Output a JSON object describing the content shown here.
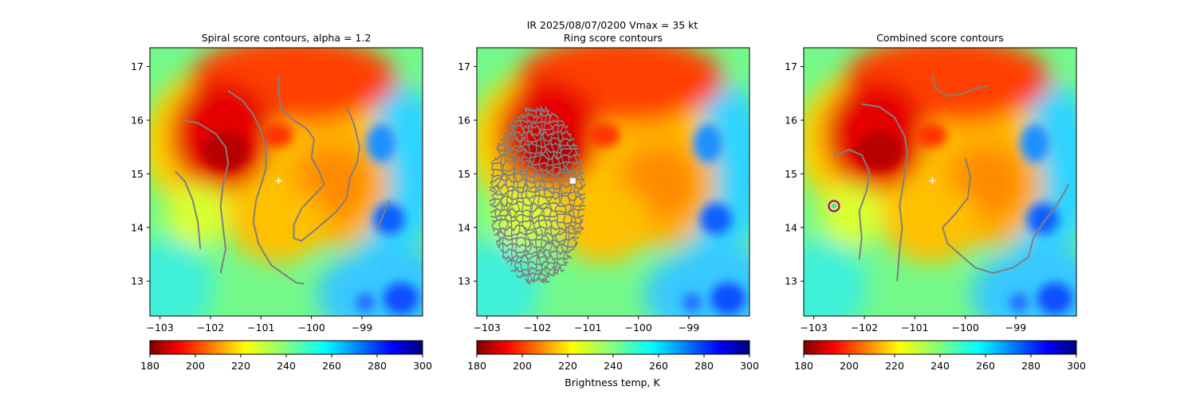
{
  "figure": {
    "suptitle_line1": "IR  2025/08/07/0200    Vmax = 35 kt",
    "colorbar_label": "Brightness temp, K",
    "colormap": [
      "#7f0000",
      "#ff0000",
      "#ff8000",
      "#ffff00",
      "#80ff80",
      "#00ffff",
      "#0080ff",
      "#0000ff",
      "#000080"
    ]
  },
  "chart_data": [
    {
      "type": "heatmap",
      "title": "Spiral score contours, alpha =  1.2",
      "xlim": [
        -103.2,
        -97.8
      ],
      "ylim": [
        12.35,
        17.35
      ],
      "xticks": [
        -103,
        -102,
        -101,
        -100,
        -99
      ],
      "yticks": [
        13,
        14,
        15,
        16,
        17
      ],
      "center": {
        "x": -100.65,
        "y": 14.87,
        "marker": "white-plus"
      },
      "colorbar": {
        "vmin": 180,
        "vmax": 300,
        "ticks": [
          180,
          200,
          220,
          240,
          260,
          280,
          300
        ]
      },
      "contours": [
        [
          [
            -102.7,
            15.05
          ],
          [
            -102.5,
            14.85
          ],
          [
            -102.35,
            14.5
          ],
          [
            -102.25,
            14.1
          ],
          [
            -102.2,
            13.6
          ]
        ],
        [
          [
            -102.55,
            16.0
          ],
          [
            -102.25,
            15.95
          ],
          [
            -101.9,
            15.75
          ],
          [
            -101.7,
            15.5
          ],
          [
            -101.65,
            15.2
          ],
          [
            -101.75,
            14.8
          ],
          [
            -101.8,
            14.4
          ],
          [
            -101.75,
            14.0
          ],
          [
            -101.7,
            13.6
          ],
          [
            -101.8,
            13.15
          ]
        ],
        [
          [
            -101.65,
            16.55
          ],
          [
            -101.35,
            16.35
          ],
          [
            -101.15,
            16.1
          ],
          [
            -101.0,
            15.8
          ],
          [
            -100.9,
            15.5
          ],
          [
            -100.9,
            15.1
          ],
          [
            -101.0,
            14.8
          ],
          [
            -101.1,
            14.5
          ],
          [
            -101.15,
            14.1
          ],
          [
            -101.05,
            13.7
          ],
          [
            -100.8,
            13.3
          ],
          [
            -100.5,
            13.1
          ],
          [
            -100.3,
            12.97
          ],
          [
            -100.15,
            12.95
          ]
        ],
        [
          [
            -100.65,
            16.85
          ],
          [
            -100.65,
            16.5
          ],
          [
            -100.6,
            16.2
          ],
          [
            -100.35,
            16.0
          ],
          [
            -100.1,
            15.85
          ],
          [
            -99.95,
            15.65
          ],
          [
            -100.0,
            15.3
          ],
          [
            -99.85,
            15.05
          ],
          [
            -99.75,
            14.8
          ],
          [
            -99.95,
            14.6
          ],
          [
            -100.2,
            14.35
          ],
          [
            -100.35,
            14.05
          ],
          [
            -100.35,
            13.8
          ],
          [
            -100.2,
            13.75
          ],
          [
            -100.0,
            13.9
          ],
          [
            -99.75,
            14.1
          ],
          [
            -99.5,
            14.3
          ],
          [
            -99.3,
            14.55
          ],
          [
            -99.25,
            14.9
          ],
          [
            -99.1,
            15.2
          ],
          [
            -99.05,
            15.5
          ],
          [
            -99.15,
            15.9
          ],
          [
            -99.3,
            16.25
          ]
        ],
        [
          [
            -98.45,
            14.5
          ],
          [
            -98.55,
            14.3
          ],
          [
            -98.7,
            13.95
          ]
        ]
      ]
    },
    {
      "type": "heatmap",
      "title": "Ring score contours",
      "xlim": [
        -103.2,
        -97.8
      ],
      "ylim": [
        12.35,
        17.35
      ],
      "xticks": [
        -103,
        -102,
        -101,
        -100,
        -99
      ],
      "yticks": [
        13,
        14,
        15,
        16,
        17
      ],
      "center": {
        "x": -101.3,
        "y": 14.87,
        "marker": "white-square"
      },
      "colorbar": {
        "vmin": 180,
        "vmax": 300,
        "ticks": [
          180,
          200,
          220,
          240,
          260,
          280,
          300
        ]
      },
      "ring_region": {
        "x_center": -102.0,
        "y_center": 14.6,
        "x_half_width": 0.95,
        "y_half_height": 1.65
      }
    },
    {
      "type": "heatmap",
      "title": "Combined score contours",
      "xlim": [
        -103.2,
        -97.8
      ],
      "ylim": [
        12.35,
        17.35
      ],
      "xticks": [
        -103,
        -102,
        -101,
        -100,
        -99
      ],
      "yticks": [
        13,
        14,
        15,
        16,
        17
      ],
      "center": {
        "x": -100.65,
        "y": 14.87,
        "marker": "white-plus"
      },
      "best_point": {
        "x": -102.6,
        "y": 14.4,
        "marker": "magenta-circle"
      },
      "colorbar": {
        "vmin": 180,
        "vmax": 300,
        "ticks": [
          180,
          200,
          220,
          240,
          260,
          280,
          300
        ]
      },
      "contours": [
        [
          [
            -100.65,
            16.85
          ],
          [
            -100.6,
            16.6
          ],
          [
            -100.35,
            16.45
          ],
          [
            -100.05,
            16.5
          ],
          [
            -99.75,
            16.6
          ],
          [
            -99.55,
            16.65
          ]
        ],
        [
          [
            -102.05,
            16.3
          ],
          [
            -101.7,
            16.25
          ],
          [
            -101.4,
            16.05
          ],
          [
            -101.2,
            15.7
          ],
          [
            -101.15,
            15.4
          ],
          [
            -101.2,
            15.0
          ],
          [
            -101.25,
            14.7
          ],
          [
            -101.3,
            14.4
          ],
          [
            -101.25,
            14.0
          ],
          [
            -101.3,
            13.6
          ],
          [
            -101.35,
            13.0
          ]
        ],
        [
          [
            -102.6,
            15.35
          ],
          [
            -102.3,
            15.45
          ],
          [
            -102.05,
            15.35
          ],
          [
            -101.9,
            15.05
          ],
          [
            -101.95,
            14.7
          ],
          [
            -102.1,
            14.3
          ],
          [
            -102.05,
            13.8
          ],
          [
            -102.1,
            13.4
          ]
        ],
        [
          [
            -100.0,
            15.3
          ],
          [
            -99.9,
            14.95
          ],
          [
            -99.95,
            14.55
          ],
          [
            -100.2,
            14.25
          ],
          [
            -100.45,
            14.0
          ],
          [
            -100.35,
            13.7
          ],
          [
            -100.05,
            13.45
          ],
          [
            -99.8,
            13.25
          ],
          [
            -99.45,
            13.15
          ],
          [
            -99.05,
            13.25
          ],
          [
            -98.75,
            13.45
          ],
          [
            -98.65,
            13.8
          ],
          [
            -98.45,
            14.1
          ],
          [
            -98.2,
            14.4
          ],
          [
            -97.95,
            14.8
          ]
        ]
      ]
    }
  ]
}
